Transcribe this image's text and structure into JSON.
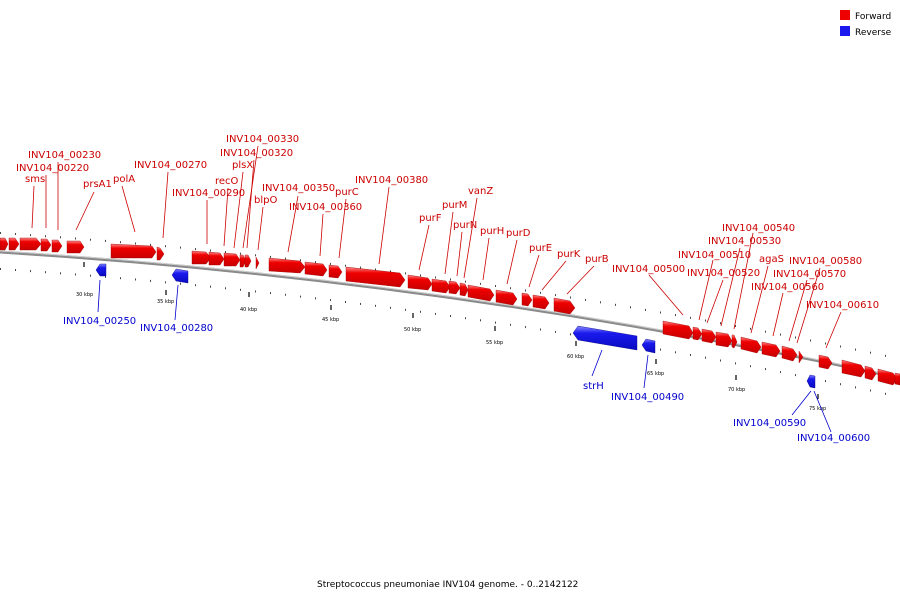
{
  "legend": {
    "forward": "Forward",
    "reverse": "Reverse"
  },
  "caption": "Streptococcus pneumoniae INV104 genome. - 0..2142122",
  "colors": {
    "forward": "#ee0000",
    "reverse": "#1a1aee",
    "backbone": "#8a8a8a"
  },
  "scale_labels": [
    "30 kbp",
    "35 kbp",
    "40 kbp",
    "45 kbp",
    "50 kbp",
    "55 kbp",
    "60 kbp",
    "65 kbp",
    "70 kbp",
    "75 kbp"
  ],
  "forward_labels": [
    "INV104_00230",
    "INV104_00220",
    "sms",
    "prsA1",
    "polA",
    "INV104_00270",
    "INV104_00290",
    "recO",
    "plsX",
    "INV104_00330",
    "INV104_00320",
    "blpO",
    "INV104_00350",
    "INV104_00360",
    "purC",
    "INV104_00380",
    "purF",
    "purM",
    "purN",
    "vanZ",
    "purH",
    "purD",
    "purE",
    "purK",
    "purB",
    "INV104_00500",
    "INV104_00510",
    "INV104_00520",
    "INV104_00530",
    "INV104_00540",
    "agaS",
    "INV104_00560",
    "INV104_00570",
    "INV104_00580",
    "INV104_00610"
  ],
  "reverse_labels": [
    "INV104_00250",
    "INV104_00280",
    "strH",
    "INV104_00490",
    "INV104_00590",
    "INV104_00600"
  ]
}
